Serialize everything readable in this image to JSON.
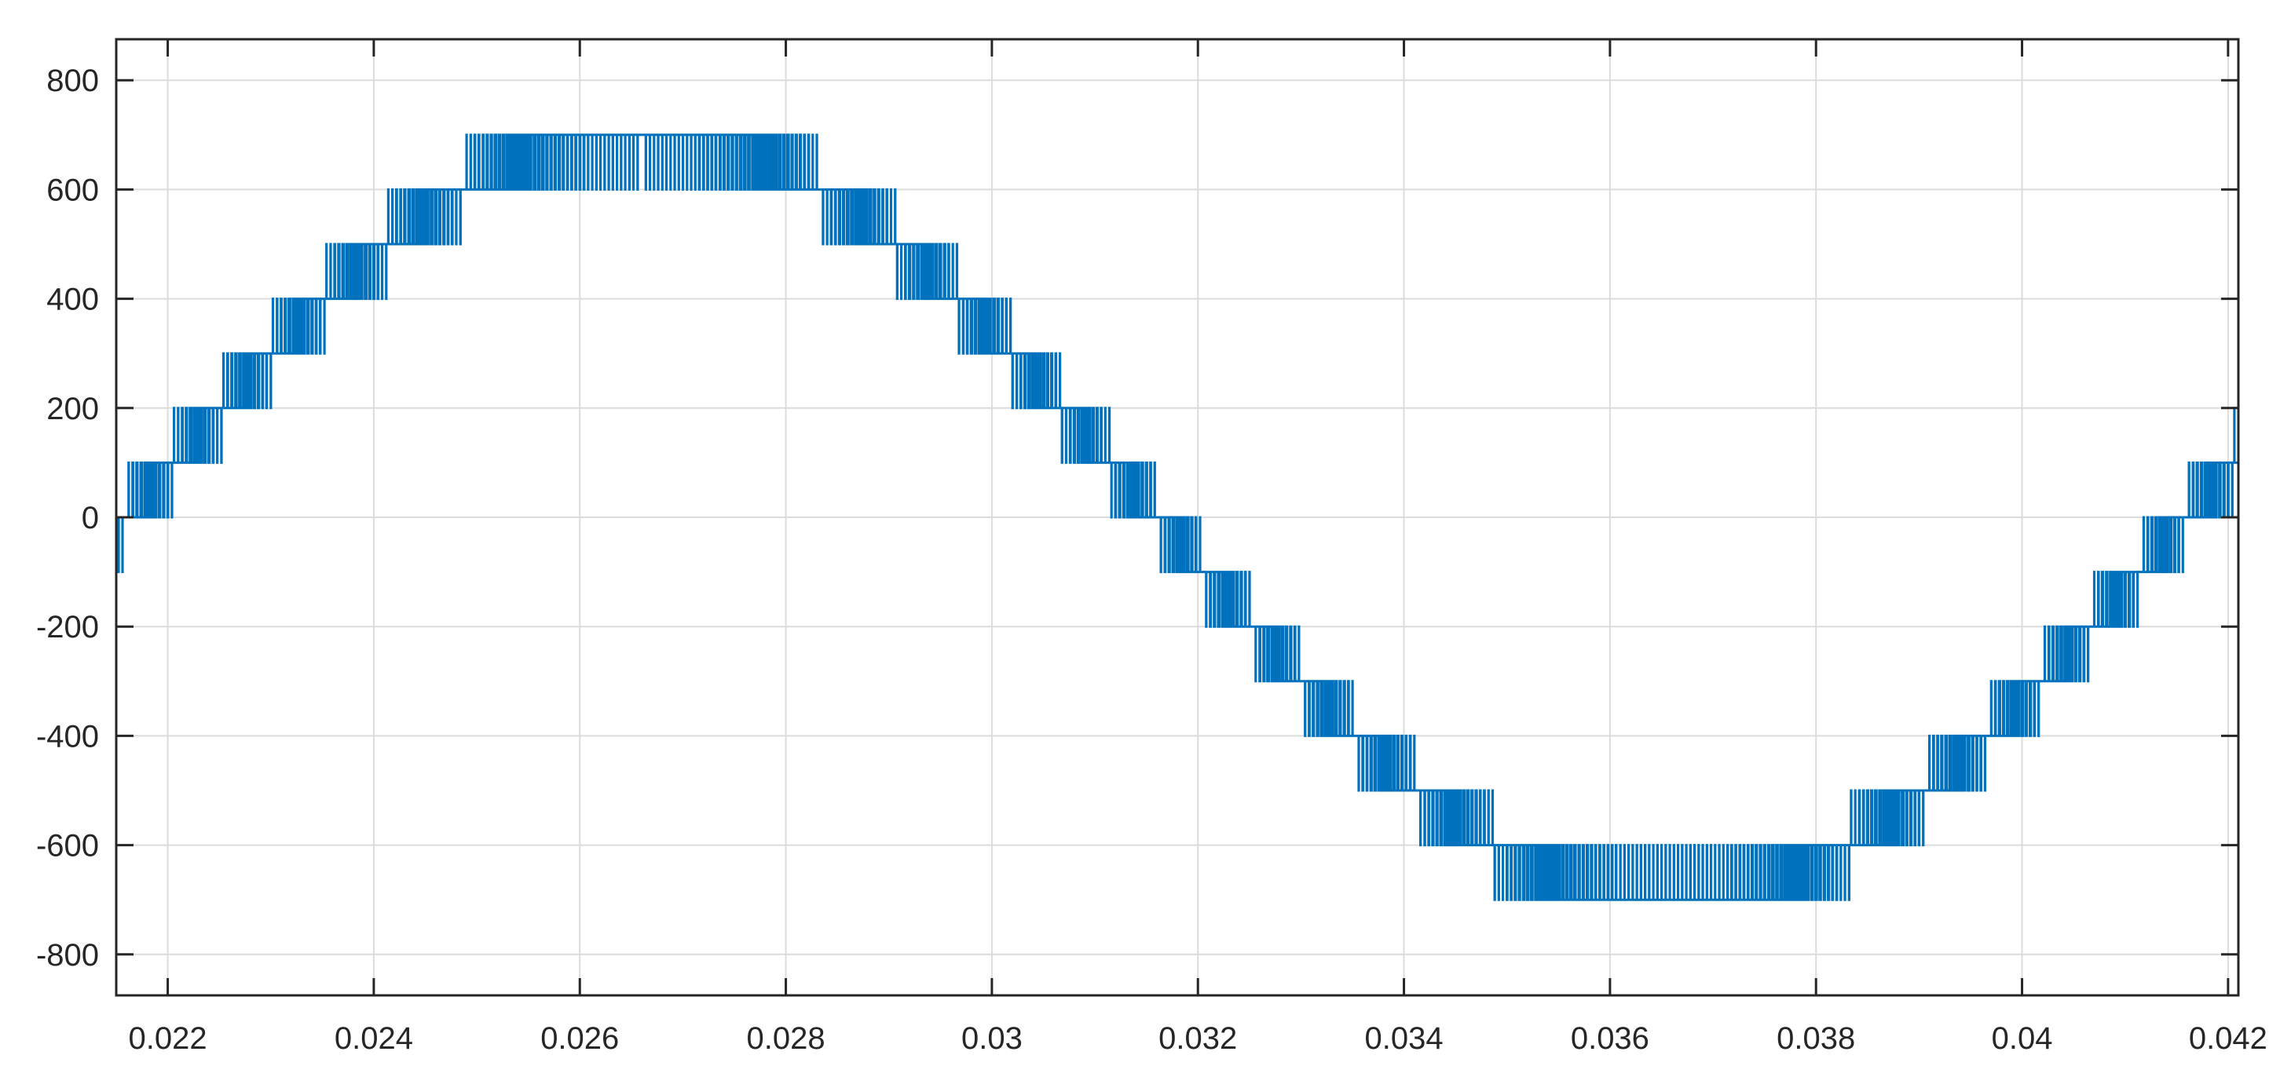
{
  "chart_data": {
    "type": "line",
    "title": "",
    "xlabel": "",
    "ylabel": "",
    "xlim": [
      0.0215,
      0.0421
    ],
    "ylim": [
      -875,
      875
    ],
    "grid": true,
    "legend": "none",
    "xticks": [
      0.022,
      0.024,
      0.026,
      0.028,
      0.03,
      0.032,
      0.034,
      0.036,
      0.038,
      0.04,
      0.042
    ],
    "xtick_labels": [
      "0.022",
      "0.024",
      "0.026",
      "0.028",
      "0.03",
      "0.032",
      "0.034",
      "0.036",
      "0.038",
      "0.04",
      "0.042"
    ],
    "yticks": [
      800,
      600,
      400,
      200,
      0,
      -200,
      -400,
      -600,
      -800
    ],
    "ytick_labels": [
      "800",
      "600",
      "400",
      "200",
      "0",
      "-200",
      "-400",
      "-600",
      "-800"
    ],
    "series": [
      {
        "color": "#0072BD",
        "signal": "multilevel PWM staircase",
        "level_step": 100,
        "amplitude": 700,
        "frequency_hz": 50,
        "zero_crossings_rising": [
          0.0216,
          0.0416
        ],
        "zero_crossing_falling": 0.0316,
        "x_range": [
          0.0215,
          0.0421
        ]
      }
    ]
  }
}
